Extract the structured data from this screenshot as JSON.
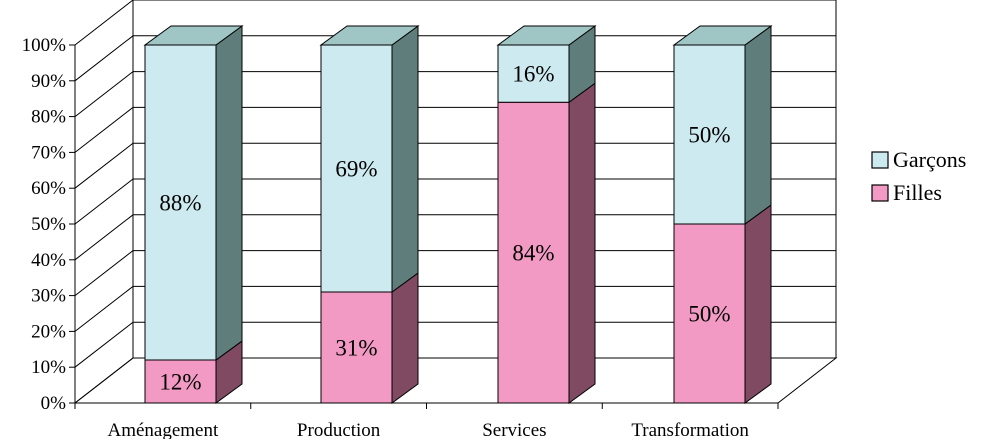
{
  "chart_data": {
    "type": "bar",
    "stacked": true,
    "percent_stacked": true,
    "three_d": true,
    "categories": [
      "Aménagement",
      "Production",
      "Services",
      "Transformation"
    ],
    "series": [
      {
        "name": "Filles",
        "values": [
          12,
          31,
          84,
          50
        ],
        "labels": [
          "12%",
          "31%",
          "84%",
          "50%"
        ]
      },
      {
        "name": "Garçons",
        "values": [
          88,
          69,
          16,
          50
        ],
        "labels": [
          "88%",
          "69%",
          "16%",
          "50%"
        ]
      }
    ],
    "y_ticks": [
      "0%",
      "10%",
      "20%",
      "30%",
      "40%",
      "50%",
      "60%",
      "70%",
      "80%",
      "90%",
      "100%"
    ],
    "ylim": [
      0,
      100
    ],
    "grid": true,
    "legend_position": "right",
    "legend_order": [
      "Garçons",
      "Filles"
    ],
    "colors": {
      "Filles": {
        "front": "#f29ac3",
        "side": "#7f4a62",
        "top": "#c27a9a"
      },
      "Garçons": {
        "front": "#cdeaf0",
        "side": "#5f7e7b",
        "top": "#9fc6c4"
      }
    }
  }
}
